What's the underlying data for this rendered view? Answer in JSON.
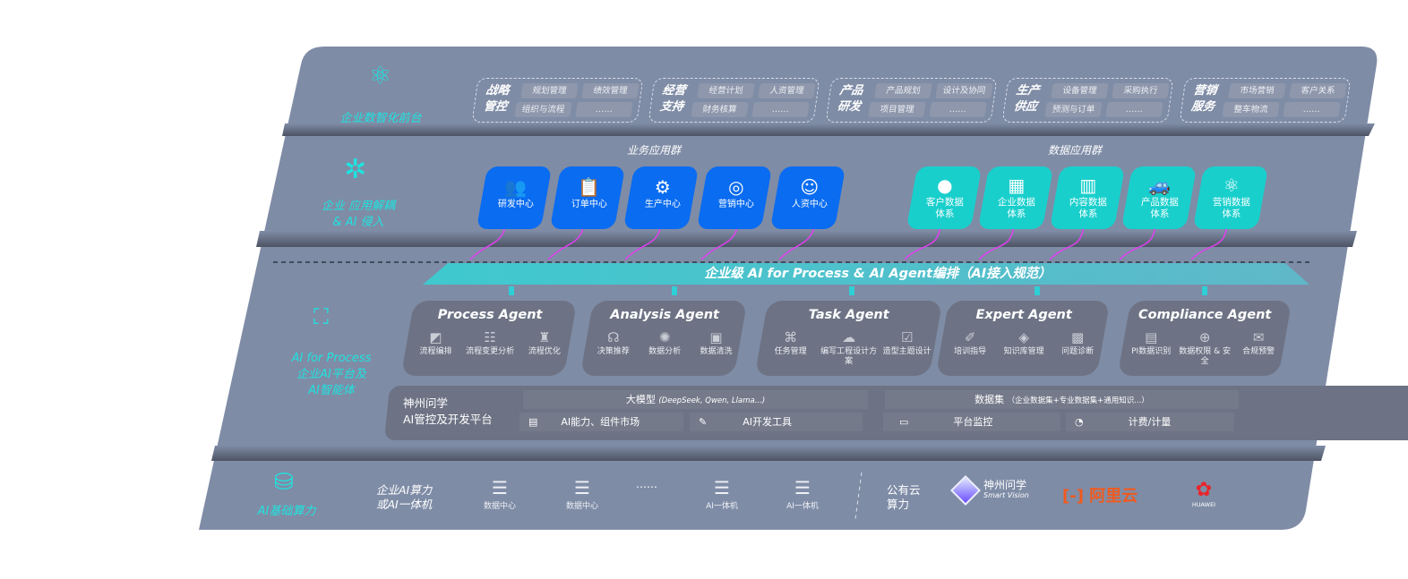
{
  "colors": {
    "panel": "#7f8ca6",
    "box": "#6d7384",
    "blue": "#0a6cf0",
    "teal": "#19cfcc",
    "cyan": "#1fe3df",
    "arrow": "#e13ff0"
  },
  "front": {
    "label": "企业数智化前台",
    "groups": [
      {
        "title": "战略管控",
        "items": [
          "规划管理",
          "绩效管理",
          "组织与流程",
          "……"
        ]
      },
      {
        "title": "经营支持",
        "items": [
          "经营计划",
          "人资管理",
          "财务核算",
          "……"
        ]
      },
      {
        "title": "产品研发",
        "items": [
          "产品规划",
          "设计及协同",
          "项目管理",
          "……"
        ]
      },
      {
        "title": "生产供应",
        "items": [
          "设备管理",
          "采购执行",
          "预测与订单",
          "……"
        ]
      },
      {
        "title": "营销服务",
        "items": [
          "市场营销",
          "客户关系",
          "整车物流",
          "……"
        ]
      }
    ]
  },
  "apps": {
    "label_line1": "企业 应用解耦",
    "label_line2": "& AI 侵入",
    "business_title": "业务应用群",
    "business": [
      "研发中心",
      "订单中心",
      "生产中心",
      "营销中心",
      "人资中心"
    ],
    "data_title": "数据应用群",
    "data": [
      "客户数据体系",
      "企业数据体系",
      "内容数据体系",
      "产品数据体系",
      "营销数据体系"
    ]
  },
  "banner": "企业级 AI for Process & AI Agent编排（AI接入规范）",
  "platform": {
    "label_line1": "AI for Process",
    "label_line2": "企业AI平台及",
    "label_line3": "AI智能体",
    "agents": [
      {
        "name": "Process Agent",
        "items": [
          "流程编排",
          "流程变更分析",
          "流程优化"
        ]
      },
      {
        "name": "Analysis Agent",
        "items": [
          "决策推荐",
          "数据分析",
          "数据清洗"
        ]
      },
      {
        "name": "Task Agent",
        "items": [
          "任务管理",
          "编写工程设计方案",
          "造型主题设计"
        ]
      },
      {
        "name": "Expert Agent",
        "items": [
          "培训指导",
          "知识库管理",
          "问题诊断"
        ]
      },
      {
        "name": "Compliance Agent",
        "items": [
          "PI数据识别",
          "数据权限 & 安全",
          "合规预警"
        ]
      }
    ],
    "mgmt_line1": "神州问学",
    "mgmt_line2": "AI管控及开发平台",
    "model": "大模型",
    "model_note": "(DeepSeek, Qwen, Llama...)",
    "dataset": "数据集",
    "dataset_note": "（企业数据集+专业数据集+通用知识...）",
    "tools": [
      "AI能力、组件市场",
      "AI开发工具",
      "平台监控",
      "计费/计量"
    ]
  },
  "infra": {
    "label": "AI基础算力",
    "onprem_line1": "企业AI算力",
    "onprem_line2": "或AI一体机",
    "servers": [
      "数据中心",
      "数据中心",
      "AI一体机",
      "AI一体机"
    ],
    "ellipsis": "……",
    "cloud_line1": "公有云",
    "cloud_line2": "算力",
    "logos": {
      "szwx": "神州问学",
      "szwx_en": "Smart Vision",
      "aliyun": "阿里云",
      "huawei": "HUAWEI"
    }
  }
}
